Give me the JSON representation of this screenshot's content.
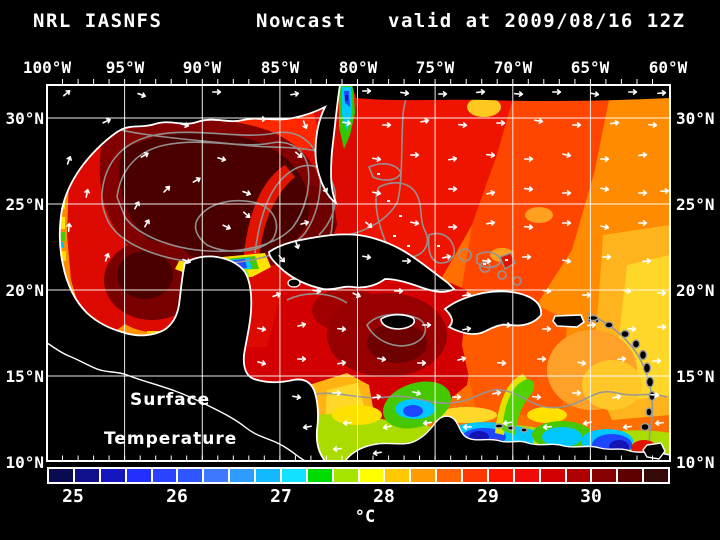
{
  "title": {
    "model": "NRL IASNFS",
    "mode": "Nowcast",
    "valid": "valid at 2009/08/16 12Z"
  },
  "map": {
    "top_axis": [
      "100°W",
      "95°W",
      "90°W",
      "85°W",
      "80°W",
      "75°W",
      "70°W",
      "65°W",
      "60°W"
    ],
    "left_axis": [
      "30°N",
      "25°N",
      "20°N",
      "15°N",
      "10°N"
    ],
    "right_axis": [
      "30°N",
      "25°N",
      "20°N",
      "15°N",
      "10°N"
    ],
    "overlay": {
      "line1": "Surface",
      "line2": "Temperature"
    }
  },
  "colorbar": {
    "unit": "°C",
    "tick_labels": [
      "25",
      "26",
      "27",
      "28",
      "29",
      "30"
    ],
    "range_min": 24.75,
    "range_max": 30.75,
    "step": 0.25,
    "colors": [
      "#0a0a50",
      "#10108c",
      "#1616be",
      "#2230ff",
      "#2b43ff",
      "#2e57ff",
      "#3e78ff",
      "#2e9bff",
      "#12b9ff",
      "#12e1ff",
      "#00dc00",
      "#a5e600",
      "#ffff00",
      "#ffc800",
      "#ff9b00",
      "#ff6400",
      "#ff3700",
      "#ff1400",
      "#f00a0a",
      "#d20000",
      "#af0000",
      "#870000",
      "#5f0000",
      "#370a0a"
    ]
  },
  "status_colors": {
    "land": "#000000",
    "coastline": "#ffffff",
    "contour": "#969696",
    "grid": "#ffffff"
  }
}
